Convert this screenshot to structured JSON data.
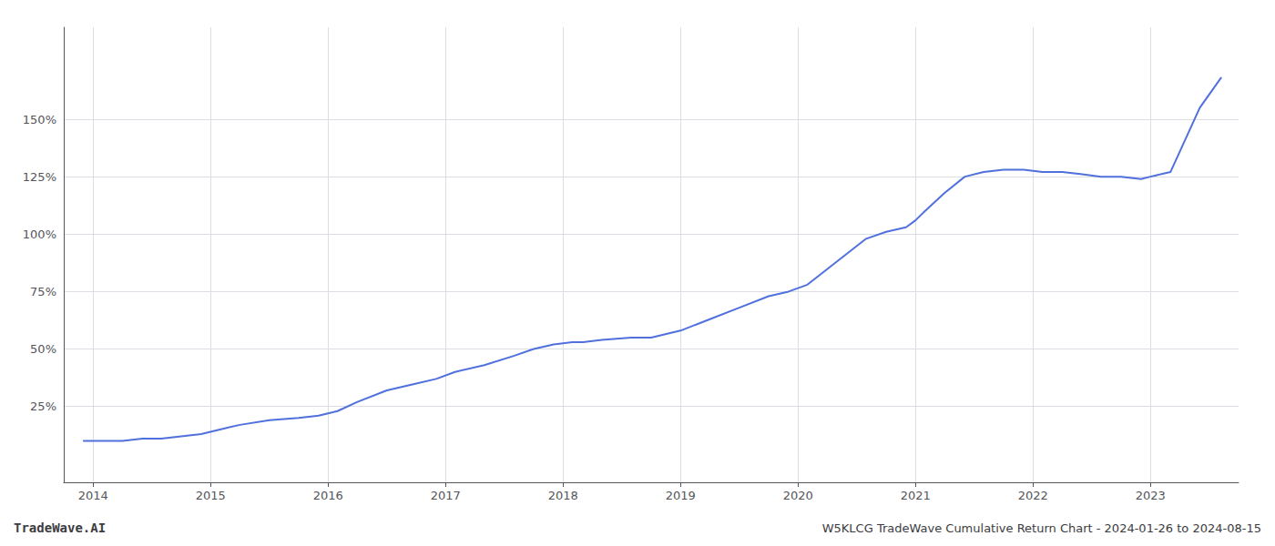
{
  "chart_data": {
    "type": "line",
    "title": "W5KLCG TradeWave Cumulative Return Chart - 2024-01-26 to 2024-08-15",
    "annotations": [
      "TradeWave.AI"
    ],
    "x": [
      2013.92,
      2014.08,
      2014.25,
      2014.42,
      2014.58,
      2014.75,
      2014.92,
      2015.08,
      2015.25,
      2015.5,
      2015.75,
      2015.92,
      2016.08,
      2016.25,
      2016.5,
      2016.75,
      2016.92,
      2017.08,
      2017.33,
      2017.58,
      2017.75,
      2017.92,
      2018.08,
      2018.17,
      2018.33,
      2018.58,
      2018.75,
      2019.0,
      2019.25,
      2019.5,
      2019.75,
      2019.92,
      2020.08,
      2020.33,
      2020.58,
      2020.75,
      2020.92,
      2021.0,
      2021.08,
      2021.25,
      2021.42,
      2021.58,
      2021.75,
      2021.92,
      2022.08,
      2022.25,
      2022.42,
      2022.58,
      2022.75,
      2022.92,
      2023.0,
      2023.17,
      2023.42,
      2023.6
    ],
    "values": [
      10,
      10,
      10,
      11,
      11,
      12,
      13,
      15,
      17,
      19,
      20,
      21,
      23,
      27,
      32,
      35,
      37,
      40,
      43,
      47,
      50,
      52,
      53,
      53,
      54,
      55,
      55,
      58,
      63,
      68,
      73,
      75,
      78,
      88,
      98,
      101,
      103,
      106,
      110,
      118,
      125,
      127,
      128,
      128,
      127,
      127,
      126,
      125,
      125,
      124,
      125,
      127,
      155,
      168
    ],
    "xlim": [
      2013.75,
      2023.75
    ],
    "xticks": [
      2014,
      2015,
      2016,
      2017,
      2018,
      2019,
      2020,
      2021,
      2022,
      2023
    ],
    "ylim": [
      -8,
      190
    ],
    "yticks": [
      {
        "value": 25,
        "label": "25%"
      },
      {
        "value": 50,
        "label": "50%"
      },
      {
        "value": 75,
        "label": "75%"
      },
      {
        "value": 100,
        "label": "100%"
      },
      {
        "value": 125,
        "label": "125%"
      },
      {
        "value": 150,
        "label": "150%"
      }
    ],
    "grid": true
  }
}
